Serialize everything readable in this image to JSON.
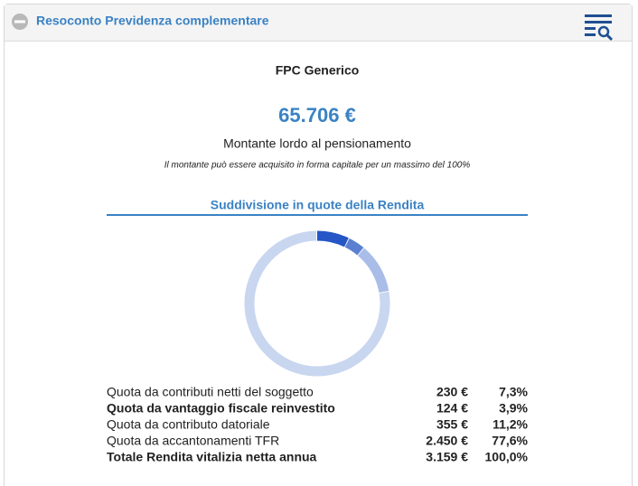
{
  "header": {
    "title": "Resoconto Previdenza complementare"
  },
  "fund_name": "FPC Generico",
  "amount": "65.706 €",
  "amount_label": "Montante lordo al pensionamento",
  "note": "Il montante può essere acquisito in forma capitale per un massimo del 100%",
  "chart_data": {
    "type": "pie",
    "title": "Suddivisione in quote della Rendita",
    "categories": [
      "Quota da contributi netti del soggetto",
      "Quota da vantaggio fiscale reinvestito",
      "Quota da contributo datoriale",
      "Quota da accantonamenti TFR"
    ],
    "values": [
      7.3,
      3.9,
      11.2,
      77.6
    ],
    "value_labels": [
      "7,3%",
      "3,9%",
      "11,2%",
      "77,6%"
    ],
    "colors": [
      "#2456c6",
      "#5b80d2",
      "#a9bde8",
      "#c9d6f0"
    ]
  },
  "table": {
    "amounts": [
      "230 €",
      "124 €",
      "355 €",
      "2.450 €"
    ],
    "total": [
      "Totale Rendita vitalizia netta annua",
      "3.159 €",
      "100,0%"
    ]
  }
}
